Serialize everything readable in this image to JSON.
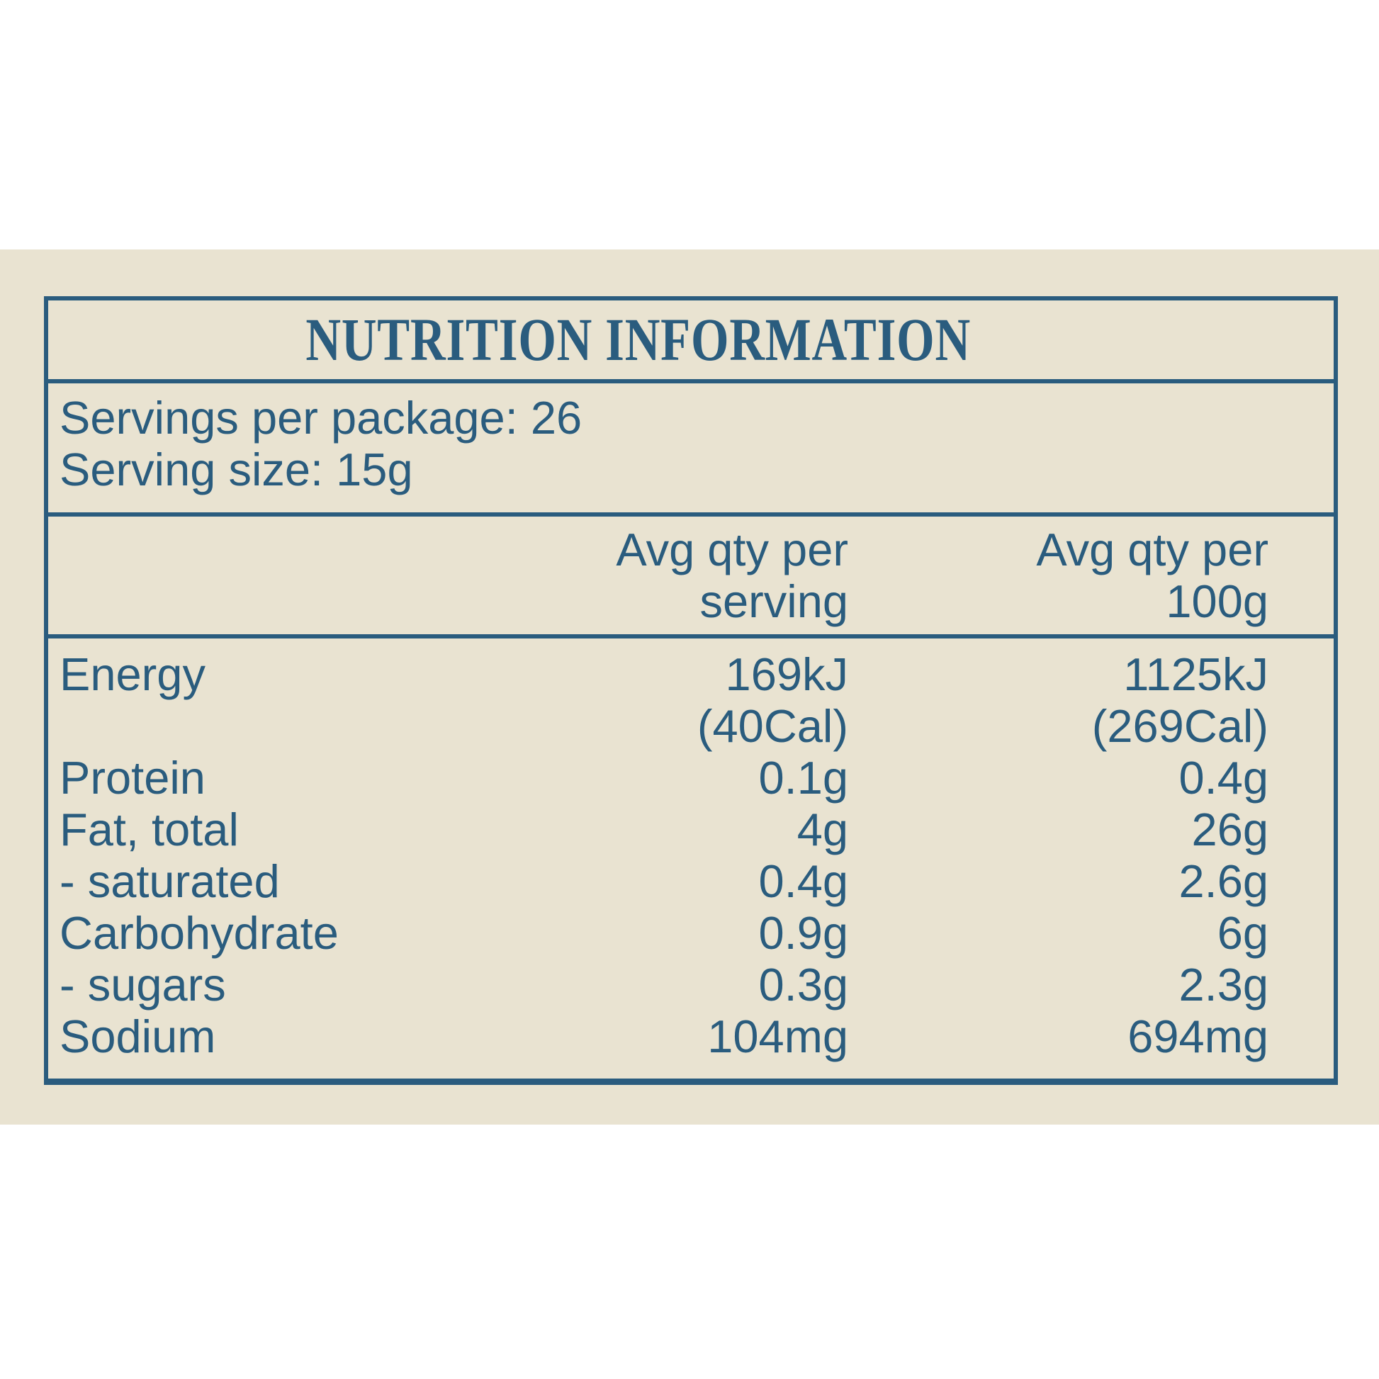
{
  "colors": {
    "text_blue": "#2A5C7E",
    "panel_beige": "#E9E3D1",
    "page_white": "#FFFFFF"
  },
  "panel": {
    "title": "NUTRITION INFORMATION",
    "serving_info": [
      "Servings per package: 26",
      "Serving size: 15g"
    ],
    "headers": {
      "serving": [
        "Avg qty per",
        "serving"
      ],
      "per100": [
        "Avg qty per",
        "100g"
      ]
    },
    "rows": [
      {
        "label": "Energy",
        "serving": "169kJ",
        "per100": "1125kJ"
      },
      {
        "label": "",
        "serving": "(40Cal)",
        "per100": "(269Cal)"
      },
      {
        "label": "Protein",
        "serving": "0.1g",
        "per100": "0.4g"
      },
      {
        "label": "Fat, total",
        "serving": "4g",
        "per100": "26g"
      },
      {
        "label": "- saturated",
        "serving": "0.4g",
        "per100": "2.6g"
      },
      {
        "label": "Carbohydrate",
        "serving": "0.9g",
        "per100": "6g"
      },
      {
        "label": "- sugars",
        "serving": "0.3g",
        "per100": "2.3g"
      },
      {
        "label": "Sodium",
        "serving": "104mg",
        "per100": "694mg"
      }
    ]
  }
}
